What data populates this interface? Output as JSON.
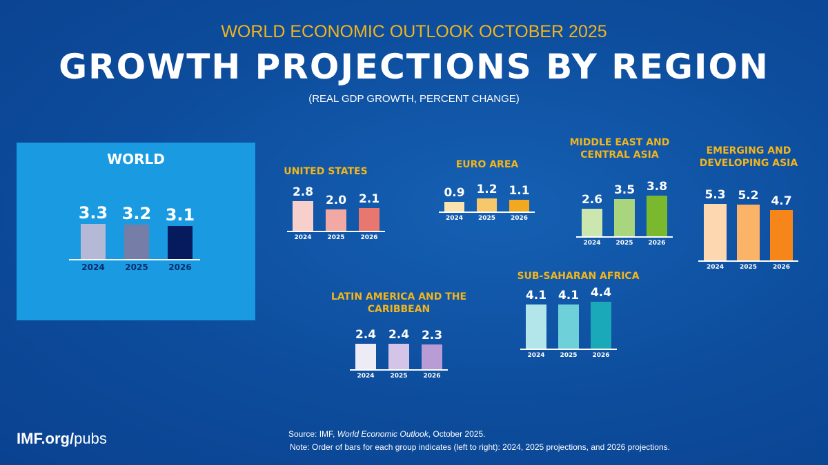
{
  "header": {
    "supertitle": "WORLD ECONOMIC OUTLOOK OCTOBER 2025",
    "title": "GROWTH PROJECTIONS BY REGION",
    "subtitle": "(REAL GDP GROWTH, PERCENT CHANGE)"
  },
  "chart_data": {
    "type": "bar",
    "categories": [
      "2024",
      "2025",
      "2026"
    ],
    "groups": [
      {
        "name": "WORLD",
        "values": [
          3.3,
          3.2,
          3.1
        ],
        "colors": [
          "#b6b9d6",
          "#767ea8",
          "#061a5e"
        ],
        "labels": [
          "3.3",
          "3.2",
          "3.1"
        ]
      },
      {
        "name": "UNITED STATES",
        "values": [
          2.8,
          2.0,
          2.1
        ],
        "colors": [
          "#f7d0cc",
          "#f2a9a3",
          "#e8786f"
        ],
        "labels": [
          "2.8",
          "2.0",
          "2.1"
        ]
      },
      {
        "name": "EURO AREA",
        "values": [
          0.9,
          1.2,
          1.1
        ],
        "colors": [
          "#fbe3b0",
          "#f6c86b",
          "#f2a81f"
        ],
        "labels": [
          "0.9",
          "1.2",
          "1.1"
        ]
      },
      {
        "name": "MIDDLE EAST AND CENTRAL ASIA",
        "values": [
          2.6,
          3.5,
          3.8
        ],
        "colors": [
          "#cce6b0",
          "#a9d57e",
          "#7ab92e"
        ],
        "labels": [
          "2.6",
          "3.5",
          "3.8"
        ]
      },
      {
        "name": "EMERGING AND DEVELOPING ASIA",
        "values": [
          5.3,
          5.2,
          4.7
        ],
        "colors": [
          "#fdd7b0",
          "#fbb367",
          "#f7861a"
        ],
        "labels": [
          "5.3",
          "5.2",
          "4.7"
        ]
      },
      {
        "name": "SUB-SAHARAN AFRICA",
        "values": [
          4.1,
          4.1,
          4.4
        ],
        "colors": [
          "#b3e6ea",
          "#6ed0d8",
          "#1aa9b8"
        ],
        "labels": [
          "4.1",
          "4.1",
          "4.4"
        ]
      },
      {
        "name": "LATIN AMERICA AND THE CARIBBEAN",
        "values": [
          2.4,
          2.4,
          2.3
        ],
        "colors": [
          "#ecebf6",
          "#d4c5e8",
          "#b99bd6"
        ],
        "labels": [
          "2.4",
          "2.4",
          "2.3"
        ]
      }
    ]
  },
  "footer": {
    "brand_bold": "IMF.org/",
    "brand_light": "pubs",
    "source_prefix": "Source:  IMF, ",
    "source_italic": "World Economic Outlook",
    "source_suffix": ", October 2025.",
    "note": "Note:  Order of bars for each group indicates (left to right): 2024, 2025 projections, and 2026 projections."
  },
  "colors": {
    "background": "#0d4c9c",
    "accent": "#f2b51b",
    "world_panel": "#1a9ae0"
  }
}
